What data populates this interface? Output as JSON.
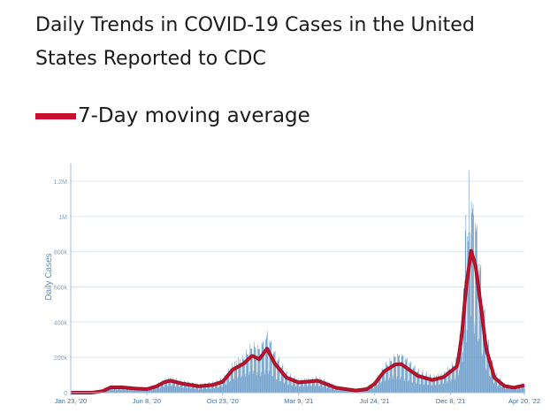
{
  "page": {
    "title": "Daily Trends in COVID-19 Cases in the United States Reported to CDC"
  },
  "chart_data": {
    "type": "bar",
    "ylabel": "Daily Cases",
    "xlabel": "",
    "ylim": [
      0,
      1300000
    ],
    "yticks": [
      {
        "value": 200000,
        "label": "200k"
      },
      {
        "value": 400000,
        "label": "400k"
      },
      {
        "value": 600000,
        "label": "600k"
      },
      {
        "value": 800000,
        "label": "800k"
      },
      {
        "value": 1000000,
        "label": "1M"
      },
      {
        "value": 1200000,
        "label": "1.2M"
      }
    ],
    "xticks": [
      "Jan 23, '20",
      "Jun 8, '20",
      "Oct 23, '20",
      "Mar 9, '21",
      "Jul 24, '21",
      "Dec 8, '21",
      "Apr 20, '22"
    ],
    "grid": true,
    "legend_position": "top-left",
    "series": [
      {
        "name": "7-Day moving average",
        "kind": "line",
        "color": "#c8102e",
        "points": [
          [
            "2020-01-23",
            0
          ],
          [
            "2020-03-01",
            0
          ],
          [
            "2020-03-20",
            8000
          ],
          [
            "2020-04-04",
            30000
          ],
          [
            "2020-04-25",
            30000
          ],
          [
            "2020-05-20",
            23000
          ],
          [
            "2020-06-08",
            20000
          ],
          [
            "2020-06-25",
            35000
          ],
          [
            "2020-07-10",
            60000
          ],
          [
            "2020-07-21",
            68000
          ],
          [
            "2020-08-10",
            52000
          ],
          [
            "2020-09-10",
            36000
          ],
          [
            "2020-10-05",
            44000
          ],
          [
            "2020-10-23",
            62000
          ],
          [
            "2020-11-10",
            130000
          ],
          [
            "2020-11-30",
            165000
          ],
          [
            "2020-12-15",
            210000
          ],
          [
            "2020-12-28",
            190000
          ],
          [
            "2021-01-11",
            250000
          ],
          [
            "2021-01-25",
            165000
          ],
          [
            "2021-02-15",
            85000
          ],
          [
            "2021-03-09",
            58000
          ],
          [
            "2021-04-12",
            68000
          ],
          [
            "2021-05-15",
            28000
          ],
          [
            "2021-06-20",
            12000
          ],
          [
            "2021-07-10",
            20000
          ],
          [
            "2021-07-24",
            50000
          ],
          [
            "2021-08-10",
            120000
          ],
          [
            "2021-08-30",
            160000
          ],
          [
            "2021-09-10",
            162000
          ],
          [
            "2021-10-10",
            95000
          ],
          [
            "2021-11-05",
            72000
          ],
          [
            "2021-11-25",
            88000
          ],
          [
            "2021-12-08",
            120000
          ],
          [
            "2021-12-20",
            150000
          ],
          [
            "2021-12-28",
            320000
          ],
          [
            "2022-01-05",
            600000
          ],
          [
            "2022-01-14",
            805000
          ],
          [
            "2022-01-22",
            720000
          ],
          [
            "2022-02-01",
            480000
          ],
          [
            "2022-02-10",
            250000
          ],
          [
            "2022-02-25",
            85000
          ],
          [
            "2022-03-15",
            38000
          ],
          [
            "2022-04-01",
            28000
          ],
          [
            "2022-04-20",
            42000
          ]
        ]
      },
      {
        "name": "Daily Cases",
        "kind": "bar",
        "color": "#5b92c4",
        "spikes": [
          [
            "2020-12-19",
            265000
          ],
          [
            "2021-01-08",
            300000
          ],
          [
            "2022-01-10",
            1260000
          ],
          [
            "2022-01-04",
            1010000
          ],
          [
            "2022-01-18",
            1010000
          ],
          [
            "2022-01-03",
            920000
          ],
          [
            "2022-01-12",
            910000
          ]
        ]
      }
    ]
  }
}
